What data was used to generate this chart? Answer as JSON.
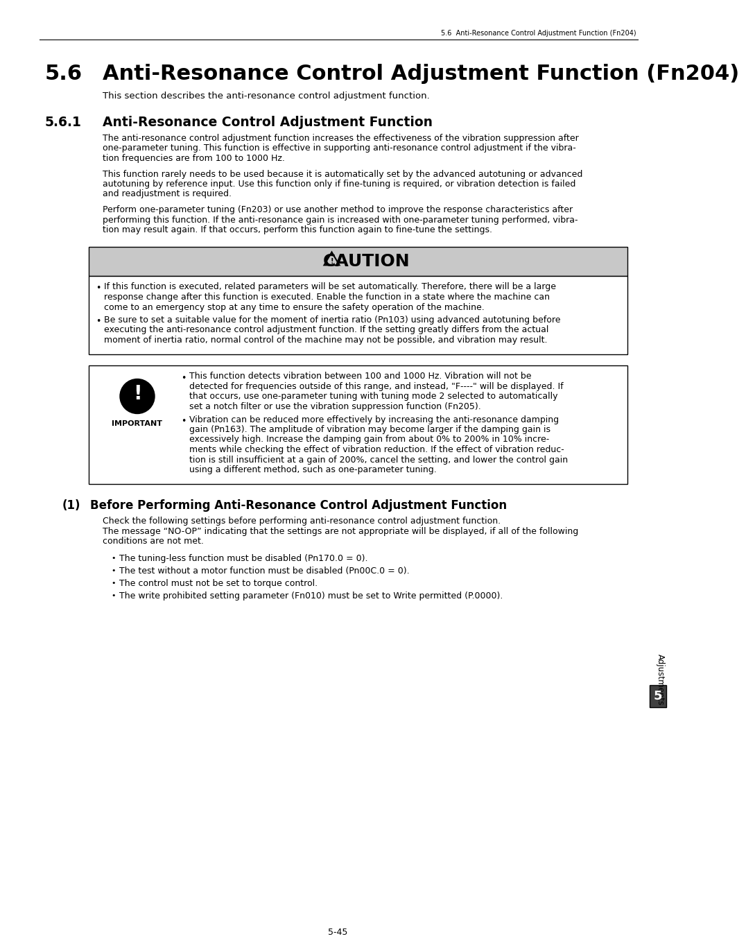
{
  "header_text": "5.6  Anti-Resonance Control Adjustment Function (Fn204)",
  "section_num": "5.6",
  "section_title": "Anti-Resonance Control Adjustment Function (Fn204)",
  "section_intro": "This section describes the anti-resonance control adjustment function.",
  "subsection_num": "5.6.1",
  "subsection_title": "Anti-Resonance Control Adjustment Function",
  "para1": "The anti-resonance control adjustment function increases the effectiveness of the vibration suppression after\none-parameter tuning. This function is effective in supporting anti-resonance control adjustment if the vibra-\ntion frequencies are from 100 to 1000 Hz.",
  "para2": "This function rarely needs to be used because it is automatically set by the advanced autotuning or advanced\nautotuning by reference input. Use this function only if fine-tuning is required, or vibration detection is failed\nand readjustment is required.",
  "para3": "Perform one-parameter tuning (Fn203) or use another method to improve the response characteristics after\nperforming this function. If the anti-resonance gain is increased with one-parameter tuning performed, vibra-\ntion may result again. If that occurs, perform this function again to fine-tune the settings.",
  "caution_title": "CAUTION",
  "caution_bullet1_lines": [
    "If this function is executed, related parameters will be set automatically. Therefore, there will be a large",
    "response change after this function is executed. Enable the function in a state where the machine can",
    "come to an emergency stop at any time to ensure the safety operation of the machine."
  ],
  "caution_bullet2_lines": [
    "Be sure to set a suitable value for the moment of inertia ratio (Pn103) using advanced autotuning before",
    "executing the anti-resonance control adjustment function. If the setting greatly differs from the actual",
    "moment of inertia ratio, normal control of the machine may not be possible, and vibration may result."
  ],
  "important_bullet1_lines": [
    "This function detects vibration between 100 and 1000 Hz. Vibration will not be",
    "detected for frequencies outside of this range, and instead, \"F----\" will be displayed. If",
    "that occurs, use one-parameter tuning with tuning mode 2 selected to automatically",
    "set a notch filter or use the vibration suppression function (Fn205)."
  ],
  "important_bullet2_lines": [
    "Vibration can be reduced more effectively by increasing the anti-resonance damping",
    "gain (Pn163). The amplitude of vibration may become larger if the damping gain is",
    "excessively high. Increase the damping gain from about 0% to 200% in 10% incre-",
    "ments while checking the effect of vibration reduction. If the effect of vibration reduc-",
    "tion is still insufficient at a gain of 200%, cancel the setting, and lower the control gain",
    "using a different method, such as one-parameter tuning."
  ],
  "sub2_num": "(1)",
  "sub2_title": "Before Performing Anti-Resonance Control Adjustment Function",
  "sub2_intro1": "Check the following settings before performing anti-resonance control adjustment function.",
  "sub2_intro2": "The message “NO-OP” indicating that the settings are not appropriate will be displayed, if all of the following",
  "sub2_intro3": "conditions are not met.",
  "sub2_bullets": [
    "The tuning-less function must be disabled (Pn170.0 = 0).",
    "The test without a motor function must be disabled (Pn00C.0 = 0).",
    "The control must not be set to torque control.",
    "The write prohibited setting parameter (Fn010) must be set to Write permitted (P.0000)."
  ],
  "sidebar_text": "Adjustments",
  "sidebar_num": "5",
  "footer_text": "5-45",
  "bg_color": "#ffffff",
  "caution_header_bg": "#c8c8c8",
  "box_border": "#000000",
  "text_color": "#000000"
}
